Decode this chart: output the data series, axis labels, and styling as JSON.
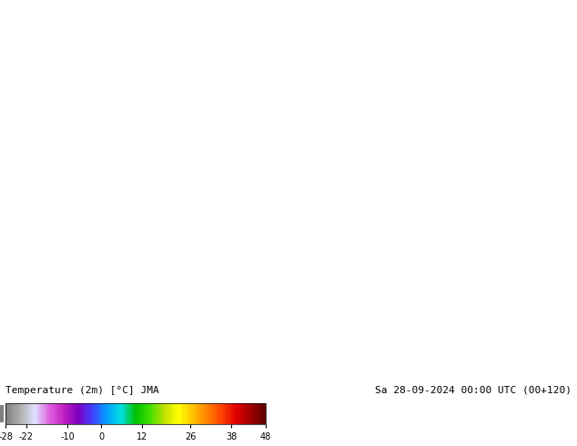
{
  "title_left": "Temperature (2m) [°C] JMA",
  "title_right": "Sa 28-09-2024 00:00 UTC (00+120)",
  "colorbar_levels": [
    -28,
    -22,
    -10,
    0,
    12,
    26,
    38,
    48
  ],
  "colorbar_colors": [
    "#808080",
    "#b0b0b0",
    "#e0e0e0",
    "#e060e0",
    "#c020c0",
    "#8000c0",
    "#4040ff",
    "#00a0ff",
    "#00e0e0",
    "#00c000",
    "#40e000",
    "#c0e000",
    "#ffff00",
    "#ffc000",
    "#ff8000",
    "#ff4000",
    "#e00000",
    "#a00000",
    "#600000"
  ],
  "fig_width": 6.34,
  "fig_height": 4.9,
  "dpi": 100,
  "map_extent": [
    -170,
    -50,
    10,
    85
  ],
  "background_color": "#ffffff"
}
